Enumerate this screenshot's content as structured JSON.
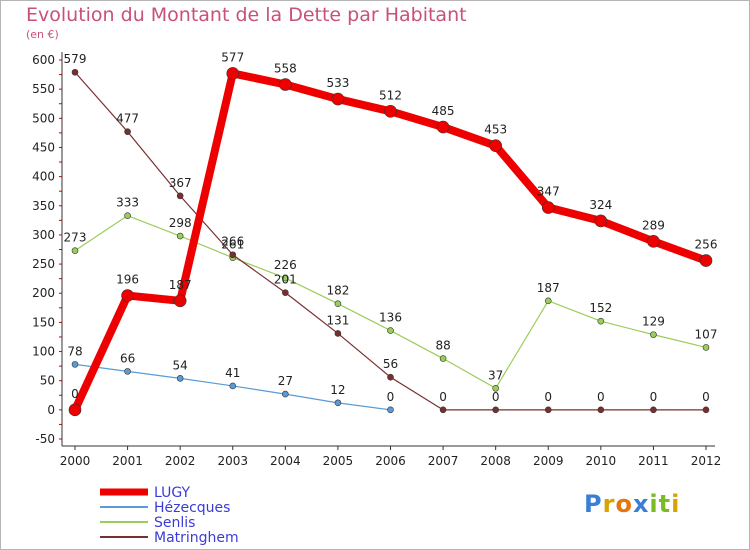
{
  "title": "Evolution du Montant de la Dette par Habitant",
  "subtitle": "(en €)",
  "logo": {
    "letters": [
      {
        "ch": "P",
        "color": "#3a7fd5"
      },
      {
        "ch": "r",
        "color": "#d9a400"
      },
      {
        "ch": "o",
        "color": "#e8740c"
      },
      {
        "ch": "x",
        "color": "#3a7fd5"
      },
      {
        "ch": "i",
        "color": "#7bbb24"
      },
      {
        "ch": "t",
        "color": "#7bbb24"
      },
      {
        "ch": "i",
        "color": "#d9a400"
      }
    ]
  },
  "chart_data": {
    "type": "line",
    "x": [
      "2000",
      "2001",
      "2002",
      "2003",
      "2004",
      "2005",
      "2006",
      "2007",
      "2008",
      "2009",
      "2010",
      "2011",
      "2012"
    ],
    "ylim": [
      -50,
      600
    ],
    "yticks": [
      600,
      550,
      500,
      450,
      400,
      350,
      300,
      250,
      200,
      150,
      100,
      50,
      0,
      -50
    ],
    "grid": false,
    "legend": "bottom-left",
    "series": [
      {
        "name": "Hézecques",
        "color": "#5a9bd5",
        "width": 1.2,
        "marker": 3,
        "values": [
          78,
          66,
          54,
          41,
          27,
          12,
          0,
          null,
          null,
          null,
          null,
          null,
          null
        ],
        "labels": [
          "78",
          "66",
          "54",
          "41",
          "27",
          "12",
          "0",
          null,
          null,
          null,
          null,
          null,
          null
        ]
      },
      {
        "name": "Senlis",
        "color": "#9acd5a",
        "width": 1.2,
        "marker": 3,
        "values": [
          273,
          333,
          298,
          261,
          226,
          182,
          136,
          88,
          37,
          187,
          152,
          129,
          107
        ],
        "labels": [
          "273",
          "333",
          "298",
          "261",
          "226",
          "182",
          "136",
          "88",
          "37",
          "187",
          "152",
          "129",
          "107"
        ]
      },
      {
        "name": "Matringhem",
        "color": "#7a2f2f",
        "width": 1.2,
        "marker": 3,
        "values": [
          579,
          477,
          367,
          266,
          201,
          131,
          56,
          0,
          0,
          0,
          0,
          0,
          0
        ],
        "labels": [
          "579",
          "477",
          "367",
          "266",
          "201",
          "131",
          "56",
          "0",
          "0",
          "0",
          "0",
          "0",
          "0"
        ]
      },
      {
        "name": "LUGY",
        "color": "#ee0000",
        "width": 8,
        "marker": 6,
        "values": [
          0,
          196,
          187,
          577,
          558,
          533,
          512,
          485,
          453,
          347,
          324,
          289,
          256
        ],
        "labels": [
          "0",
          "196",
          "187",
          "577",
          "558",
          "533",
          "512",
          "485",
          "453",
          "347",
          "324",
          "289",
          "256"
        ]
      }
    ],
    "legend_order": [
      "LUGY",
      "Hézecques",
      "Senlis",
      "Matringhem"
    ]
  }
}
